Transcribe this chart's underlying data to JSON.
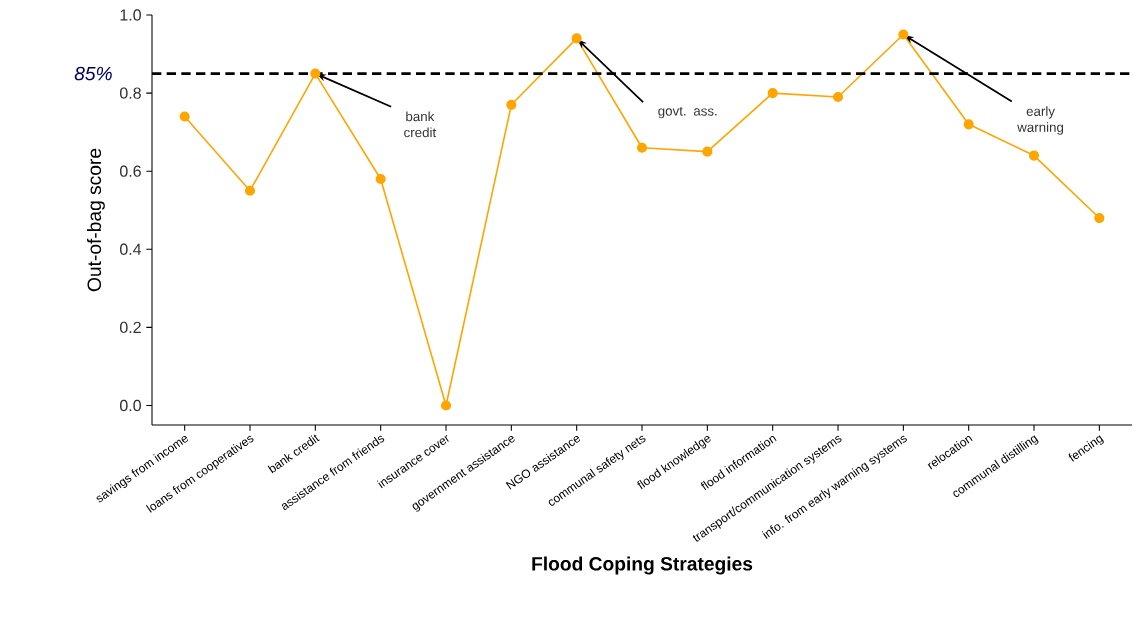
{
  "chart_data": {
    "type": "line",
    "xlabel": "Flood Coping Strategies",
    "ylabel": "Out-of-bag score",
    "categories": [
      "savings from income",
      "loans from cooperatives",
      "bank credit",
      "assistance from friends",
      "insurance cover",
      "government assistance",
      "NGO assistance",
      "communal safety nets",
      "flood knowledge",
      "flood information",
      "transport/communication systems",
      "info. from early warning systems",
      "relocation",
      "communal distilling",
      "fencing"
    ],
    "series": [
      {
        "color": "#ffa500",
        "values": [
          0.74,
          0.55,
          0.85,
          0.58,
          0.0,
          0.77,
          0.94,
          0.66,
          0.65,
          0.8,
          0.79,
          0.95,
          0.72,
          0.64,
          0.48
        ]
      }
    ],
    "ylim": [
      -0.05,
      1.0
    ],
    "yticks": [
      {
        "value": 0,
        "label": "0.0"
      },
      0.2,
      0.4,
      0.6,
      0.8,
      {
        "value": 1,
        "label": "1.0"
      }
    ],
    "ref_lines": [
      {
        "axis": "y",
        "value": 0.85,
        "label": "85%",
        "color": "#000000",
        "line_style": "dashed"
      }
    ],
    "annotations": [
      {
        "text": "bank credit",
        "x": "bank credit",
        "y": 0.85
      },
      {
        "text": "govt. ass.",
        "x": "NGO assistance",
        "y": 0.94
      },
      {
        "text": "early warning",
        "x": "info. from early warning systems",
        "y": 0.95
      }
    ],
    "marker": "circle",
    "line_style": "solid",
    "grid": false
  }
}
